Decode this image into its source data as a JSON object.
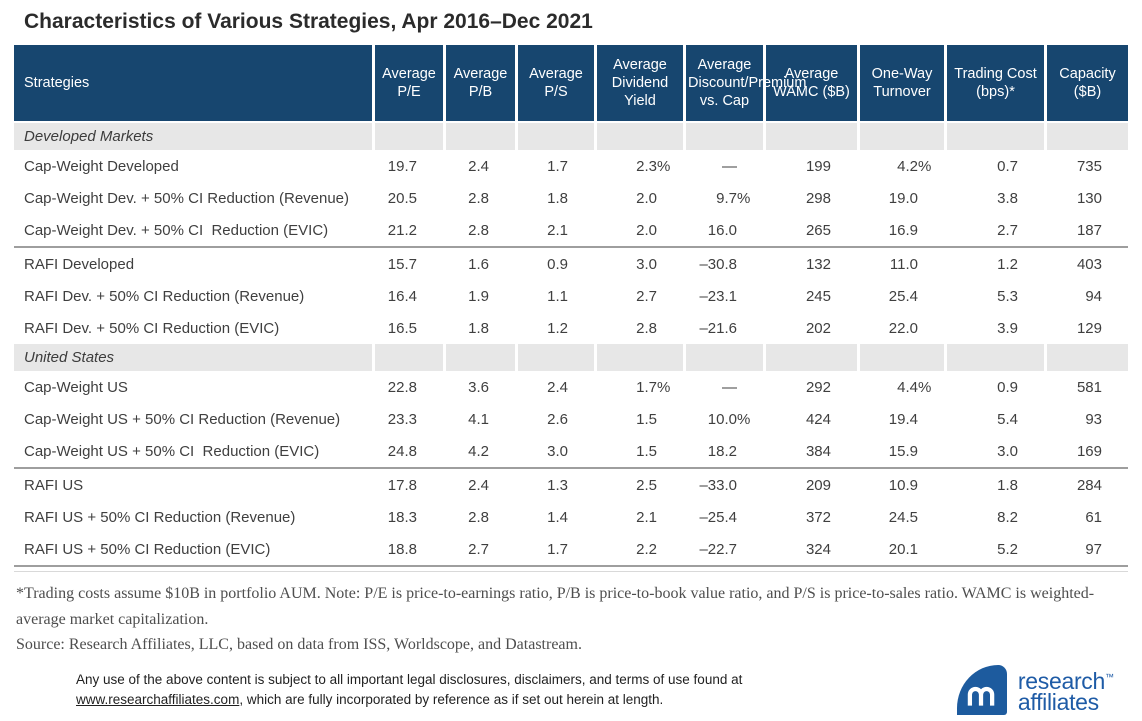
{
  "title": "Characteristics of Various Strategies, Apr 2016–Dec 2021",
  "colors": {
    "header_bg": "#17466f",
    "section_band_bg": "#e7e7e7",
    "separator_line": "#9e9e9e",
    "logo_blue": "#1d5b9e"
  },
  "table": {
    "columns": [
      "Strategies",
      "Average P/E",
      "Average P/B",
      "Average P/S",
      "Average Dividend Yield",
      "Average Discount/Premium vs. Cap",
      "Average WAMC ($B)",
      "One-Way Turnover",
      "Trading Cost (bps)*",
      "Capacity ($B)"
    ],
    "groups": [
      {
        "section": "Developed Markets",
        "blocks": [
          {
            "rows": [
              {
                "label": "Cap-Weight Developed",
                "values": [
                  "19.7",
                  "2.4",
                  "1.7",
                  "2.3%",
                  "—",
                  "199",
                  "4.2%",
                  "0.7",
                  "735"
                ]
              },
              {
                "label": "Cap-Weight Dev. + 50% CI Reduction (Revenue)",
                "values": [
                  "20.5",
                  "2.8",
                  "1.8",
                  "2.0",
                  "9.7%",
                  "298",
                  "19.0",
                  "3.8",
                  "130"
                ]
              },
              {
                "label": "Cap-Weight Dev. + 50% CI  Reduction (EVIC)",
                "values": [
                  "21.2",
                  "2.8",
                  "2.1",
                  "2.0",
                  "16.0",
                  "265",
                  "16.9",
                  "2.7",
                  "187"
                ]
              }
            ]
          },
          {
            "rows": [
              {
                "label": "RAFI Developed",
                "values": [
                  "15.7",
                  "1.6",
                  "0.9",
                  "3.0",
                  "–30.8",
                  "132",
                  "11.0",
                  "1.2",
                  "403"
                ]
              },
              {
                "label": "RAFI Dev. + 50% CI Reduction (Revenue)",
                "values": [
                  "16.4",
                  "1.9",
                  "1.1",
                  "2.7",
                  "–23.1",
                  "245",
                  "25.4",
                  "5.3",
                  "94"
                ]
              },
              {
                "label": "RAFI Dev. + 50% CI Reduction (EVIC)",
                "values": [
                  "16.5",
                  "1.8",
                  "1.2",
                  "2.8",
                  "–21.6",
                  "202",
                  "22.0",
                  "3.9",
                  "129"
                ]
              }
            ]
          }
        ]
      },
      {
        "section": "United States",
        "blocks": [
          {
            "rows": [
              {
                "label": "Cap-Weight US",
                "values": [
                  "22.8",
                  "3.6",
                  "2.4",
                  "1.7%",
                  "—",
                  "292",
                  "4.4%",
                  "0.9",
                  "581"
                ]
              },
              {
                "label": "Cap-Weight US + 50% CI Reduction (Revenue)",
                "values": [
                  "23.3",
                  "4.1",
                  "2.6",
                  "1.5",
                  "10.0%",
                  "424",
                  "19.4",
                  "5.4",
                  "93"
                ]
              },
              {
                "label": "Cap-Weight US + 50% CI  Reduction (EVIC)",
                "values": [
                  "24.8",
                  "4.2",
                  "3.0",
                  "1.5",
                  "18.2",
                  "384",
                  "15.9",
                  "3.0",
                  "169"
                ]
              }
            ]
          },
          {
            "rows": [
              {
                "label": "RAFI US",
                "values": [
                  "17.8",
                  "2.4",
                  "1.3",
                  "2.5",
                  "–33.0",
                  "209",
                  "10.9",
                  "1.8",
                  "284"
                ]
              },
              {
                "label": "RAFI US + 50% CI Reduction (Revenue)",
                "values": [
                  "18.3",
                  "2.8",
                  "1.4",
                  "2.1",
                  "–25.4",
                  "372",
                  "24.5",
                  "8.2",
                  "61"
                ]
              },
              {
                "label": "RAFI US + 50% CI Reduction (EVIC)",
                "values": [
                  "18.8",
                  "2.7",
                  "1.7",
                  "2.2",
                  "–22.7",
                  "324",
                  "20.1",
                  "5.2",
                  "97"
                ]
              }
            ]
          }
        ]
      }
    ]
  },
  "footnotes": {
    "note": "*Trading costs assume $10B in portfolio AUM. Note: P/E is price-to-earnings ratio, P/B is price-to-book value ratio, and P/S is price-to-sales ratio. WAMC is weighted-average market capitalization.",
    "source": "Source: Research Affiliates, LLC, based on data from ISS, Worldscope, and Datastream."
  },
  "disclaimer": {
    "line1": "Any use of the above content is subject to all important legal disclosures, disclaimers, and terms of use found at",
    "link_text": "www.researchaffiliates.com",
    "line2": ", which are fully incorporated by reference as if set out herein at length."
  },
  "logo": {
    "line1": "research",
    "tm": "™",
    "line2": "affiliates"
  }
}
